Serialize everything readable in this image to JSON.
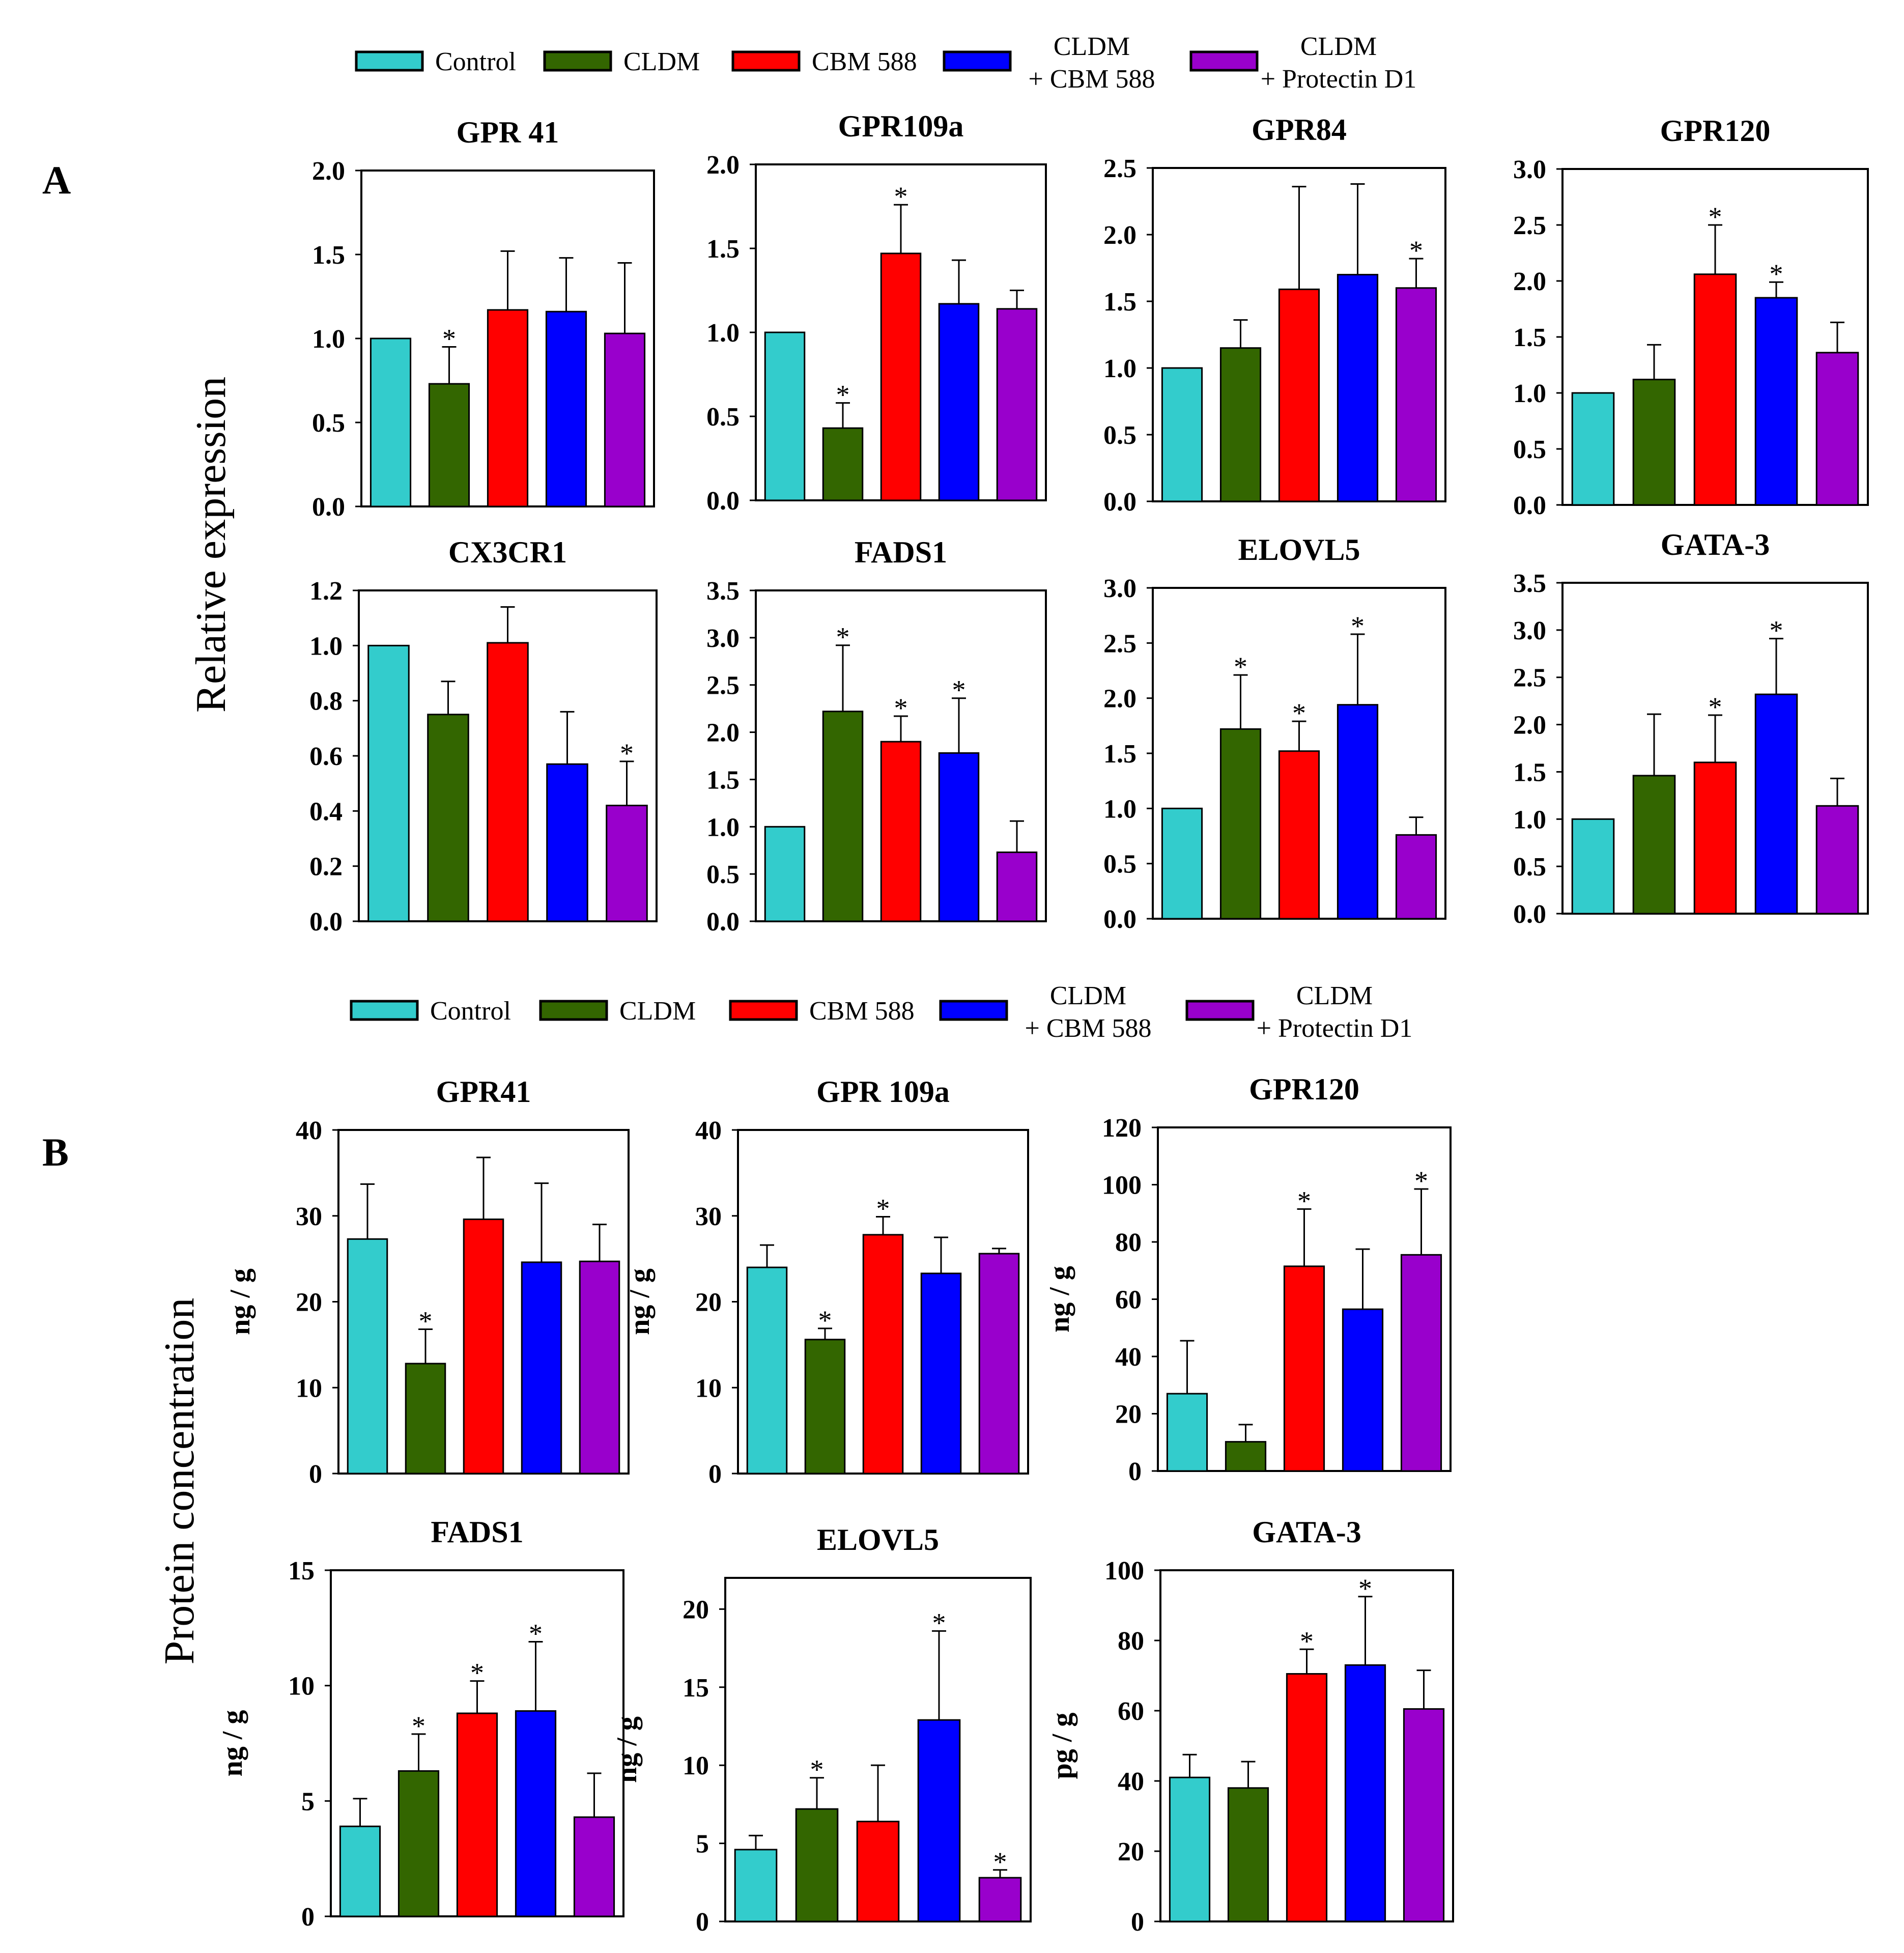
{
  "groups": [
    "Control",
    "CLDM",
    "CBM 588",
    "CLDM\n+ CBM 588",
    "CLDM\n+ Protectin D1"
  ],
  "colors": {
    "Control": "#33CCCC",
    "CLDM": "#336600",
    "CBM 588": "#FF0000",
    "CLDM + CBM 588": "#0000FF",
    "CLDM + Protectin D1": "#9900CC"
  },
  "legend_a": {
    "items": [
      {
        "label": "Control",
        "color": "#33CCCC"
      },
      {
        "label": "CLDM",
        "color": "#336600"
      },
      {
        "label": "CBM 588",
        "color": "#FF0000"
      },
      {
        "label": "CLDM\n+ CBM 588",
        "color": "#0000FF"
      },
      {
        "label": "CLDM\n+ Protectin D1",
        "color": "#9900CC"
      }
    ]
  },
  "legend_b": {
    "items": [
      {
        "label": "Control",
        "color": "#33CCCC"
      },
      {
        "label": "CLDM",
        "color": "#336600"
      },
      {
        "label": "CBM 588",
        "color": "#FF0000"
      },
      {
        "label": "CLDM\n+ CBM 588",
        "color": "#0000FF"
      },
      {
        "label": "CLDM\n+ Protectin D1",
        "color": "#9900CC"
      }
    ]
  },
  "panel_a": {
    "label": "A",
    "ylabel": "Relative expression"
  },
  "panel_b": {
    "label": "B",
    "ylabel": "Protein concentration"
  },
  "chart_data": [
    {
      "panel": "A",
      "type": "bar",
      "title": "GPR 41",
      "ylabel": "",
      "ylim": [
        0,
        2.0
      ],
      "yticks": [
        "0.0",
        "0.5",
        "1.0",
        "1.5",
        "2.0"
      ],
      "values": [
        1.0,
        0.73,
        1.17,
        1.16,
        1.03
      ],
      "errors": [
        0,
        0.22,
        0.35,
        0.32,
        0.42
      ],
      "significant": [
        false,
        true,
        false,
        false,
        false
      ]
    },
    {
      "panel": "A",
      "type": "bar",
      "title": "GPR109a",
      "ylabel": "",
      "ylim": [
        0,
        2.0
      ],
      "yticks": [
        "0.0",
        "0.5",
        "1.0",
        "1.5",
        "2.0"
      ],
      "values": [
        1.0,
        0.43,
        1.47,
        1.17,
        1.14
      ],
      "errors": [
        0,
        0.15,
        0.29,
        0.26,
        0.11
      ],
      "significant": [
        false,
        true,
        true,
        false,
        false
      ]
    },
    {
      "panel": "A",
      "type": "bar",
      "title": "GPR84",
      "ylabel": "",
      "ylim": [
        0,
        2.5
      ],
      "yticks": [
        "0.0",
        "0.5",
        "1.0",
        "1.5",
        "2.0",
        "2.5"
      ],
      "values": [
        1.0,
        1.15,
        1.59,
        1.7,
        1.6
      ],
      "errors": [
        0,
        0.21,
        0.77,
        0.68,
        0.22
      ],
      "significant": [
        false,
        false,
        false,
        false,
        true
      ]
    },
    {
      "panel": "A",
      "type": "bar",
      "title": "GPR120",
      "ylabel": "",
      "ylim": [
        0,
        3.0
      ],
      "yticks": [
        "0.0",
        "0.5",
        "1.0",
        "1.5",
        "2.0",
        "2.5",
        "3.0"
      ],
      "values": [
        1.0,
        1.12,
        2.06,
        1.85,
        1.36
      ],
      "errors": [
        0,
        0.31,
        0.44,
        0.14,
        0.27
      ],
      "significant": [
        false,
        false,
        true,
        true,
        false
      ]
    },
    {
      "panel": "A",
      "type": "bar",
      "title": "CX3CR1",
      "ylabel": "",
      "ylim": [
        0,
        1.2
      ],
      "yticks": [
        "0.0",
        "0.2",
        "0.4",
        "0.6",
        "0.8",
        "1.0",
        "1.2"
      ],
      "values": [
        1.0,
        0.75,
        1.01,
        0.57,
        0.42
      ],
      "errors": [
        0,
        0.12,
        0.13,
        0.19,
        0.16
      ],
      "significant": [
        false,
        false,
        false,
        false,
        true
      ]
    },
    {
      "panel": "A",
      "type": "bar",
      "title": "FADS1",
      "ylabel": "",
      "ylim": [
        0,
        3.5
      ],
      "yticks": [
        "0.0",
        "0.5",
        "1.0",
        "1.5",
        "2.0",
        "2.5",
        "3.0",
        "3.5"
      ],
      "values": [
        1.0,
        2.22,
        1.9,
        1.78,
        0.73
      ],
      "errors": [
        0,
        0.7,
        0.27,
        0.58,
        0.33
      ],
      "significant": [
        false,
        true,
        true,
        true,
        false
      ]
    },
    {
      "panel": "A",
      "type": "bar",
      "title": "ELOVL5",
      "ylabel": "",
      "ylim": [
        0,
        3.0
      ],
      "yticks": [
        "0.0",
        "0.5",
        "1.0",
        "1.5",
        "2.0",
        "2.5",
        "3.0"
      ],
      "values": [
        1.0,
        1.72,
        1.52,
        1.94,
        0.76
      ],
      "errors": [
        0,
        0.49,
        0.27,
        0.64,
        0.16
      ],
      "significant": [
        false,
        true,
        true,
        true,
        false
      ]
    },
    {
      "panel": "A",
      "type": "bar",
      "title": "GATA-3",
      "ylabel": "",
      "ylim": [
        0,
        3.5
      ],
      "yticks": [
        "0.0",
        "0.5",
        "1.0",
        "1.5",
        "2.0",
        "2.5",
        "3.0",
        "3.5"
      ],
      "values": [
        1.0,
        1.46,
        1.6,
        2.32,
        1.14
      ],
      "errors": [
        0,
        0.65,
        0.5,
        0.59,
        0.29
      ],
      "significant": [
        false,
        false,
        true,
        true,
        false
      ]
    },
    {
      "panel": "B",
      "type": "bar",
      "title": "GPR41",
      "ylabel": "ng / g",
      "ylim": [
        0,
        40
      ],
      "yticks": [
        "0",
        "10",
        "20",
        "30",
        "40"
      ],
      "values": [
        27.3,
        12.8,
        29.6,
        24.6,
        24.7
      ],
      "errors": [
        6.4,
        4.0,
        7.2,
        9.2,
        4.3
      ],
      "significant": [
        false,
        true,
        false,
        false,
        false
      ]
    },
    {
      "panel": "B",
      "type": "bar",
      "title": "GPR 109a",
      "ylabel": "ng / g",
      "ylim": [
        0,
        40
      ],
      "yticks": [
        "0",
        "10",
        "20",
        "30",
        "40"
      ],
      "values": [
        24.0,
        15.6,
        27.8,
        23.3,
        25.6
      ],
      "errors": [
        2.6,
        1.3,
        2.1,
        4.2,
        0.6
      ],
      "significant": [
        false,
        true,
        true,
        false,
        false
      ]
    },
    {
      "panel": "B",
      "type": "bar",
      "title": "GPR120",
      "ylabel": "ng / g",
      "ylim": [
        0,
        120
      ],
      "yticks": [
        "0",
        "20",
        "40",
        "60",
        "80",
        "100",
        "120"
      ],
      "values": [
        27.0,
        10.2,
        71.5,
        56.5,
        75.5
      ],
      "errors": [
        18.5,
        6.0,
        20.0,
        21.0,
        23.0
      ],
      "significant": [
        false,
        false,
        true,
        false,
        true
      ]
    },
    {
      "panel": "B",
      "type": "bar",
      "title": "FADS1",
      "ylabel": "ng / g",
      "ylim": [
        0,
        15
      ],
      "yticks": [
        "0",
        "5",
        "10",
        "15"
      ],
      "values": [
        3.9,
        6.3,
        8.8,
        8.9,
        4.3
      ],
      "errors": [
        1.2,
        1.6,
        1.4,
        3.0,
        1.9
      ],
      "significant": [
        false,
        true,
        true,
        true,
        false
      ]
    },
    {
      "panel": "B",
      "type": "bar",
      "title": "ELOVL5",
      "ylabel": "ng / g",
      "ylim": [
        0,
        22
      ],
      "yticks": [
        "0",
        "5",
        "10",
        "15",
        "20"
      ],
      "values": [
        4.6,
        7.2,
        6.4,
        12.9,
        2.8
      ],
      "errors": [
        0.9,
        2.0,
        3.6,
        5.7,
        0.5
      ],
      "significant": [
        false,
        true,
        false,
        true,
        true
      ]
    },
    {
      "panel": "B",
      "type": "bar",
      "title": "GATA-3",
      "ylabel": "pg / g",
      "ylim": [
        0,
        100
      ],
      "yticks": [
        "0",
        "20",
        "40",
        "60",
        "80",
        "100"
      ],
      "values": [
        41.0,
        38.0,
        70.5,
        73.0,
        60.5
      ],
      "errors": [
        6.5,
        7.5,
        7.0,
        19.5,
        11.0
      ],
      "significant": [
        false,
        false,
        true,
        true,
        false
      ]
    }
  ]
}
